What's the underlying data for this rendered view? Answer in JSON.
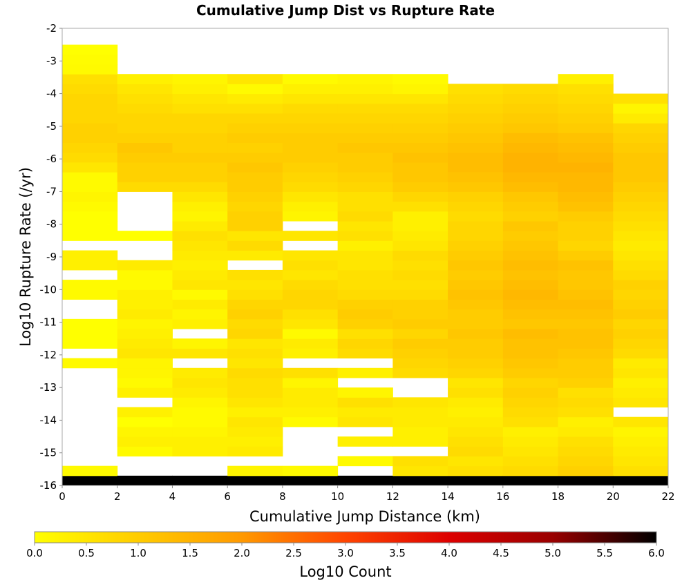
{
  "chart_data": {
    "type": "heatmap",
    "title": "Cumulative Jump Dist vs Rupture Rate",
    "xlabel": "Cumulative Jump Distance (km)",
    "ylabel": "Log10 Rupture Rate (/yr)",
    "xlim": [
      0,
      22
    ],
    "ylim": [
      -16,
      -2
    ],
    "x_ticks": [
      "0",
      "2",
      "4",
      "6",
      "8",
      "10",
      "12",
      "14",
      "16",
      "18",
      "20",
      "22"
    ],
    "y_ticks": [
      "-2",
      "-3",
      "-4",
      "-5",
      "-6",
      "-7",
      "-8",
      "-9",
      "-10",
      "-11",
      "-12",
      "-13",
      "-14",
      "-15",
      "-16"
    ],
    "x_bin_edges": [
      0,
      2,
      4,
      6,
      8,
      10,
      12,
      14,
      16,
      18,
      20,
      22
    ],
    "y_bin_size": 0.3,
    "colorbar": {
      "label": "Log10 Count",
      "range": [
        0.0,
        6.0
      ],
      "ticks": [
        "0.0",
        "0.5",
        "1.0",
        "1.5",
        "2.0",
        "2.5",
        "3.0",
        "3.5",
        "4.0",
        "4.5",
        "5.0",
        "5.5",
        "6.0"
      ],
      "colors": [
        "#ffff00",
        "#ffcc00",
        "#ff9900",
        "#ff4400",
        "#dd0000",
        "#990000",
        "#000000"
      ]
    },
    "columns": [
      {
        "x_range": [
          0,
          2
        ],
        "y_start": -16,
        "values": [
          6.0,
          0.1,
          null,
          null,
          null,
          null,
          null,
          null,
          null,
          null,
          null,
          null,
          0.1,
          null,
          0.0,
          0.0,
          0.0,
          null,
          null,
          0.1,
          0.1,
          null,
          0.3,
          0.3,
          null,
          0.0,
          0.0,
          0.0,
          0.1,
          0.2,
          0.1,
          0.1,
          0.5,
          0.7,
          0.8,
          0.9,
          0.9,
          0.8,
          0.8,
          0.8,
          0.7,
          0.6,
          0.1,
          0.05,
          0.0
        ]
      },
      {
        "x_range": [
          2,
          4
        ],
        "y_start": -16,
        "values": [
          6.0,
          null,
          null,
          0.1,
          0.3,
          0.2,
          0.0,
          0.3,
          null,
          0.3,
          0.1,
          0.2,
          0.2,
          0.5,
          0.4,
          0.3,
          0.2,
          0.4,
          0.3,
          0.3,
          0.1,
          0.1,
          0.4,
          null,
          null,
          0.0,
          null,
          null,
          null,
          null,
          0.7,
          0.9,
          0.9,
          1.0,
          1.1,
          0.9,
          0.8,
          0.8,
          0.7,
          0.6,
          0.5,
          0.3
        ]
      },
      {
        "x_range": [
          4,
          6
        ],
        "y_start": -16,
        "values": [
          6.0,
          null,
          null,
          0.3,
          0.3,
          0.2,
          0.1,
          0.1,
          0.2,
          0.4,
          0.5,
          0.4,
          null,
          0.5,
          0.2,
          null,
          0.3,
          0.2,
          0.4,
          0.1,
          0.5,
          0.4,
          0.3,
          0.4,
          0.5,
          0.6,
          0.4,
          0.2,
          0.3,
          0.5,
          0.7,
          0.9,
          0.9,
          1.0,
          0.9,
          0.9,
          0.8,
          0.8,
          0.6,
          0.5,
          0.3,
          0.2
        ]
      },
      {
        "x_range": [
          6,
          8
        ],
        "y_start": -16,
        "values": [
          6.0,
          0.2,
          null,
          0.4,
          0.3,
          0.4,
          0.5,
          0.3,
          0.5,
          0.6,
          0.6,
          0.7,
          0.5,
          0.6,
          0.5,
          0.8,
          0.7,
          0.9,
          0.8,
          0.6,
          0.5,
          0.6,
          null,
          0.4,
          0.7,
          0.5,
          0.9,
          0.9,
          0.8,
          0.9,
          1.0,
          1.0,
          1.1,
          1.0,
          0.9,
          1.0,
          0.9,
          0.8,
          0.6,
          0.4,
          0.1,
          0.5
        ]
      },
      {
        "x_range": [
          8,
          10
        ],
        "y_start": -16,
        "values": [
          6.0,
          0.1,
          null,
          null,
          null,
          null,
          0.1,
          0.3,
          0.4,
          0.4,
          0.2,
          0.6,
          null,
          0.3,
          0.4,
          0.1,
          0.5,
          0.6,
          0.8,
          0.8,
          0.7,
          0.5,
          0.6,
          0.5,
          null,
          0.5,
          null,
          0.2,
          0.3,
          0.5,
          0.7,
          0.8,
          0.9,
          1.0,
          1.0,
          1.0,
          0.9,
          0.8,
          0.7,
          0.5,
          0.3,
          0.1
        ]
      },
      {
        "x_range": [
          10,
          12
        ],
        "y_start": -16,
        "values": [
          6.0,
          null,
          0.1,
          null,
          0.3,
          null,
          0.5,
          0.4,
          0.6,
          0.2,
          null,
          0.3,
          null,
          0.7,
          0.8,
          0.6,
          0.9,
          1.0,
          0.9,
          0.7,
          0.6,
          0.6,
          0.5,
          0.5,
          0.3,
          0.6,
          0.5,
          0.7,
          0.6,
          0.6,
          0.8,
          0.9,
          1.0,
          1.0,
          1.1,
          1.0,
          0.9,
          0.8,
          0.7,
          0.5,
          0.3,
          0.2
        ]
      },
      {
        "x_range": [
          12,
          14
        ],
        "y_start": -16,
        "values": [
          6.0,
          0.5,
          0.6,
          null,
          0.3,
          0.3,
          0.4,
          0.4,
          0.5,
          null,
          null,
          0.7,
          0.8,
          0.9,
          1.0,
          0.8,
          1.0,
          0.9,
          0.9,
          0.7,
          0.6,
          0.7,
          0.6,
          0.7,
          0.5,
          0.4,
          0.3,
          0.3,
          0.6,
          0.8,
          1.0,
          1.1,
          1.1,
          1.2,
          1.1,
          1.0,
          0.9,
          0.8,
          0.7,
          0.5,
          0.2,
          0.1
        ]
      },
      {
        "x_range": [
          14,
          16
        ],
        "y_start": -16,
        "values": [
          6.0,
          0.6,
          0.5,
          0.7,
          0.6,
          0.5,
          0.4,
          0.3,
          0.4,
          0.6,
          0.5,
          0.8,
          0.9,
          1.0,
          1.0,
          1.1,
          1.0,
          1.0,
          1.1,
          1.2,
          1.1,
          1.0,
          1.1,
          1.0,
          0.9,
          0.8,
          0.8,
          0.7,
          0.8,
          0.9,
          1.1,
          1.2,
          1.3,
          1.3,
          1.2,
          1.1,
          1.0,
          0.9,
          0.8,
          0.7,
          0.6
        ]
      },
      {
        "x_range": [
          16,
          18
        ],
        "y_start": -16,
        "values": [
          6.0,
          0.7,
          0.6,
          0.5,
          0.4,
          0.3,
          0.6,
          0.7,
          0.8,
          0.9,
          0.8,
          1.0,
          1.1,
          1.2,
          1.2,
          1.3,
          1.1,
          1.2,
          1.3,
          1.4,
          1.3,
          1.2,
          1.3,
          1.2,
          1.1,
          1.0,
          1.1,
          0.9,
          1.0,
          1.1,
          1.3,
          1.4,
          1.5,
          1.5,
          1.4,
          1.3,
          1.1,
          1.0,
          0.9,
          0.8,
          0.7
        ]
      },
      {
        "x_range": [
          18,
          20
        ],
        "y_start": -16,
        "values": [
          6.0,
          0.9,
          0.8,
          0.7,
          0.6,
          0.4,
          0.3,
          0.6,
          0.7,
          0.6,
          0.9,
          1.0,
          1.0,
          1.1,
          1.2,
          1.2,
          1.1,
          1.2,
          1.3,
          1.2,
          1.1,
          1.1,
          1.2,
          1.0,
          0.8,
          0.9,
          0.9,
          1.0,
          1.2,
          1.3,
          1.4,
          1.4,
          1.5,
          1.4,
          1.3,
          1.2,
          1.0,
          0.9,
          0.8,
          0.7,
          0.6,
          0.3
        ]
      },
      {
        "x_range": [
          20,
          22
        ],
        "y_start": -16,
        "values": [
          6.0,
          0.6,
          0.5,
          0.4,
          0.3,
          0.2,
          0.5,
          null,
          0.5,
          0.4,
          0.3,
          0.5,
          0.4,
          0.7,
          0.8,
          0.9,
          0.8,
          1.0,
          0.9,
          0.8,
          0.9,
          0.7,
          0.6,
          0.5,
          0.4,
          0.5,
          0.6,
          0.7,
          0.8,
          0.9,
          1.0,
          1.1,
          1.1,
          1.1,
          1.0,
          0.9,
          0.8,
          0.4,
          0.2,
          0.6
        ]
      }
    ]
  }
}
